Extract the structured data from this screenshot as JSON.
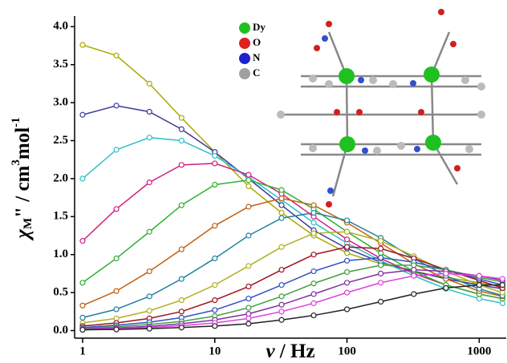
{
  "chart_data": {
    "type": "line",
    "xlabel": [
      "ν",
      " / Hz"
    ],
    "ylabel": [
      "χ",
      "M",
      "\"",
      " / cm",
      "3",
      "mol",
      "-1"
    ],
    "xlog": true,
    "xlim": [
      0.87,
      1600
    ],
    "xticks": [
      1,
      10,
      100,
      1000
    ],
    "ylim": [
      -0.1,
      4.14
    ],
    "yticks": [
      {
        "value": 0,
        "label": "0.0"
      },
      0.5,
      {
        "value": 1,
        "label": "1.0"
      },
      1.5,
      {
        "value": 2,
        "label": "2.0"
      },
      2.5,
      {
        "value": 3,
        "label": "3.0"
      },
      3.5,
      {
        "value": 4,
        "label": "4.0"
      }
    ],
    "x": [
      1,
      1.8,
      3.2,
      5.6,
      10,
      18,
      32,
      56,
      100,
      180,
      320,
      560,
      1000,
      1500
    ],
    "series": [
      {
        "color": "#a8a800",
        "values": [
          3.76,
          3.62,
          3.25,
          2.8,
          2.35,
          1.9,
          1.55,
          1.25,
          1.02,
          0.88,
          0.78,
          0.7,
          0.63,
          0.58
        ]
      },
      {
        "color": "#3a3a9a",
        "values": [
          2.84,
          2.96,
          2.88,
          2.65,
          2.35,
          2.0,
          1.65,
          1.32,
          1.08,
          0.9,
          0.78,
          0.68,
          0.6,
          0.55
        ]
      },
      {
        "color": "#30c0c8",
        "values": [
          2.0,
          2.38,
          2.54,
          2.5,
          2.3,
          2.02,
          1.72,
          1.42,
          1.15,
          0.92,
          0.72,
          0.55,
          0.42,
          0.36
        ]
      },
      {
        "color": "#d02080",
        "values": [
          1.18,
          1.6,
          1.95,
          2.18,
          2.2,
          2.05,
          1.8,
          1.5,
          1.2,
          0.95,
          0.75,
          0.6,
          0.48,
          0.42
        ]
      },
      {
        "color": "#30b030",
        "values": [
          0.63,
          0.95,
          1.3,
          1.65,
          1.92,
          1.98,
          1.85,
          1.6,
          1.3,
          1.02,
          0.78,
          0.6,
          0.48,
          0.42
        ]
      },
      {
        "color": "#c06010",
        "values": [
          0.33,
          0.52,
          0.78,
          1.07,
          1.38,
          1.63,
          1.74,
          1.65,
          1.42,
          1.15,
          0.88,
          0.68,
          0.52,
          0.45
        ]
      },
      {
        "color": "#2080a0",
        "values": [
          0.17,
          0.28,
          0.45,
          0.68,
          0.95,
          1.25,
          1.48,
          1.55,
          1.45,
          1.22,
          0.95,
          0.72,
          0.55,
          0.46
        ]
      },
      {
        "color": "#b0b020",
        "values": [
          0.1,
          0.16,
          0.26,
          0.4,
          0.6,
          0.85,
          1.1,
          1.28,
          1.3,
          1.18,
          0.98,
          0.78,
          0.6,
          0.5
        ]
      },
      {
        "color": "#a01020",
        "values": [
          0.06,
          0.1,
          0.16,
          0.25,
          0.4,
          0.58,
          0.8,
          1.0,
          1.1,
          1.08,
          0.95,
          0.8,
          0.66,
          0.56
        ]
      },
      {
        "color": "#3050c0",
        "values": [
          0.04,
          0.07,
          0.11,
          0.17,
          0.27,
          0.42,
          0.6,
          0.78,
          0.92,
          0.96,
          0.9,
          0.8,
          0.68,
          0.6
        ]
      },
      {
        "color": "#40a040",
        "values": [
          0.03,
          0.05,
          0.08,
          0.12,
          0.19,
          0.3,
          0.45,
          0.62,
          0.77,
          0.86,
          0.86,
          0.8,
          0.7,
          0.64
        ]
      },
      {
        "color": "#8030a0",
        "values": [
          0.02,
          0.035,
          0.055,
          0.09,
          0.14,
          0.22,
          0.34,
          0.48,
          0.63,
          0.75,
          0.8,
          0.78,
          0.72,
          0.66
        ]
      },
      {
        "color": "#e040e0",
        "values": [
          0.015,
          0.025,
          0.04,
          0.065,
          0.1,
          0.16,
          0.25,
          0.36,
          0.5,
          0.63,
          0.72,
          0.75,
          0.72,
          0.68
        ]
      },
      {
        "color": "#202020",
        "values": [
          0.01,
          0.015,
          0.025,
          0.04,
          0.06,
          0.09,
          0.14,
          0.2,
          0.28,
          0.38,
          0.48,
          0.56,
          0.6,
          0.6
        ]
      }
    ],
    "inset_legend": [
      {
        "label": "Dy",
        "color": "#20c020"
      },
      {
        "label": "O",
        "color": "#e02020"
      },
      {
        "label": "N",
        "color": "#2020d0"
      },
      {
        "label": "C",
        "color": "#a0a0a0"
      }
    ]
  }
}
